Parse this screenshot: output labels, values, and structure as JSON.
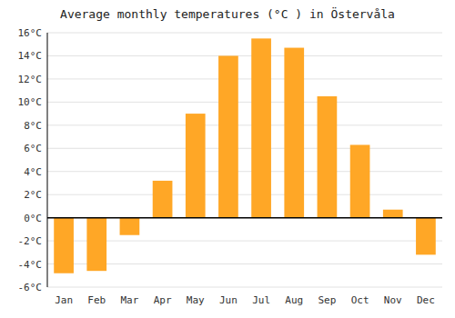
{
  "chart_data": {
    "type": "bar",
    "title": "Average monthly temperatures (°C ) in Östervåla",
    "categories": [
      "Jan",
      "Feb",
      "Mar",
      "Apr",
      "May",
      "Jun",
      "Jul",
      "Aug",
      "Sep",
      "Oct",
      "Nov",
      "Dec"
    ],
    "values": [
      -4.8,
      -4.6,
      -1.5,
      3.2,
      9.0,
      14.0,
      15.5,
      14.7,
      10.5,
      6.3,
      0.7,
      -3.2
    ],
    "color": "#FFA726",
    "ylim": [
      -6,
      16
    ],
    "yticks": [
      {
        "value": -6,
        "label": "-6°C"
      },
      {
        "value": -4,
        "label": "-4°C"
      },
      {
        "value": -2,
        "label": "-2°C"
      },
      {
        "value": 0,
        "label": "0°C"
      },
      {
        "value": 2,
        "label": "2°C"
      },
      {
        "value": 4,
        "label": "4°C"
      },
      {
        "value": 6,
        "label": "6°C"
      },
      {
        "value": 8,
        "label": "8°C"
      },
      {
        "value": 10,
        "label": "10°C"
      },
      {
        "value": 12,
        "label": "12°C"
      },
      {
        "value": 14,
        "label": "14°C"
      },
      {
        "value": 16,
        "label": "16°C"
      }
    ],
    "grid": true
  }
}
